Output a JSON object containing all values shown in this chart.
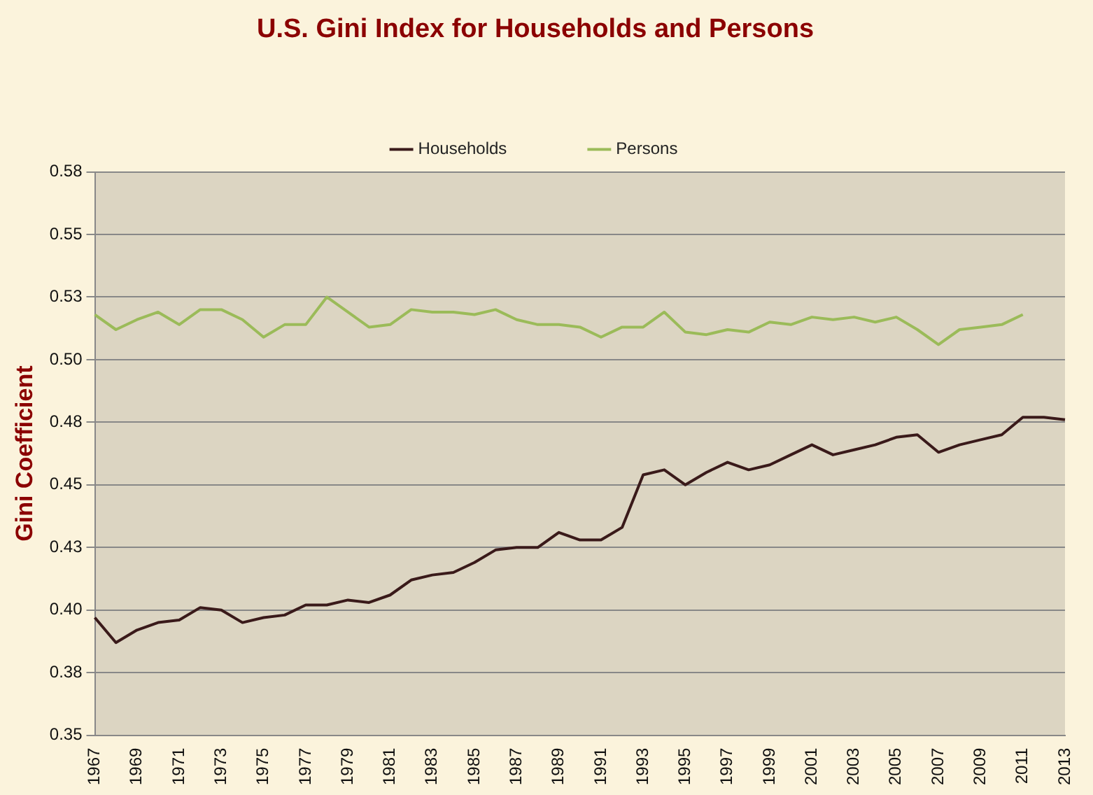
{
  "chart_data": {
    "type": "line",
    "title": "U.S. Gini Index for Households and Persons",
    "ylabel": "Gini Coefficient",
    "categories": [
      "1967",
      null,
      "1969",
      null,
      "1971",
      null,
      "1973",
      null,
      "1975",
      null,
      "1977",
      null,
      "1979",
      null,
      "1981",
      null,
      "1983",
      null,
      "1985",
      null,
      "1987",
      null,
      "1989",
      null,
      "1991",
      null,
      "1993",
      null,
      "1995",
      null,
      "1997",
      null,
      "1999",
      null,
      "2001",
      null,
      "2003",
      null,
      "2005",
      null,
      "2007",
      null,
      "2009",
      null,
      "2011",
      null,
      "2013"
    ],
    "series": [
      {
        "name": "Households",
        "color": "#3a1a1a",
        "values": [
          0.397,
          0.387,
          0.392,
          0.395,
          0.396,
          0.401,
          0.4,
          0.395,
          0.397,
          0.398,
          0.402,
          0.402,
          0.404,
          0.403,
          0.406,
          0.412,
          0.414,
          0.415,
          0.419,
          0.424,
          0.425,
          0.425,
          0.431,
          0.428,
          0.428,
          0.433,
          0.454,
          0.456,
          0.45,
          0.455,
          0.459,
          0.456,
          0.458,
          0.462,
          0.466,
          0.462,
          0.464,
          0.466,
          0.469,
          0.47,
          0.463,
          0.466,
          0.468,
          0.47,
          0.477,
          0.477,
          0.476
        ]
      },
      {
        "name": "Persons",
        "color": "#9bbb59",
        "values": [
          0.518,
          0.512,
          0.516,
          0.519,
          0.514,
          0.52,
          0.52,
          0.516,
          0.509,
          0.514,
          0.514,
          0.525,
          0.519,
          0.513,
          0.514,
          0.52,
          0.519,
          0.519,
          0.518,
          0.52,
          0.516,
          0.514,
          0.514,
          0.513,
          0.509,
          0.513,
          0.513,
          0.519,
          0.511,
          0.51,
          0.512,
          0.511,
          0.515,
          0.514,
          0.517,
          0.516,
          0.517,
          0.515,
          0.517,
          0.512,
          0.506,
          0.512,
          0.513,
          0.514,
          0.518,
          null,
          null
        ]
      }
    ],
    "ylim": [
      0.35,
      0.575
    ],
    "yticks": [
      {
        "value": 0.35,
        "label": "0.35"
      },
      {
        "value": 0.375,
        "label": "0.38"
      },
      {
        "value": 0.4,
        "label": "0.40"
      },
      {
        "value": 0.425,
        "label": "0.43"
      },
      {
        "value": 0.45,
        "label": "0.45"
      },
      {
        "value": 0.475,
        "label": "0.48"
      },
      {
        "value": 0.5,
        "label": "0.50"
      },
      {
        "value": 0.525,
        "label": "0.53"
      },
      {
        "value": 0.55,
        "label": "0.55"
      },
      {
        "value": 0.575,
        "label": "0.58"
      }
    ],
    "grid": "y",
    "legend": "top",
    "marker": "none",
    "line_style": "solid"
  }
}
